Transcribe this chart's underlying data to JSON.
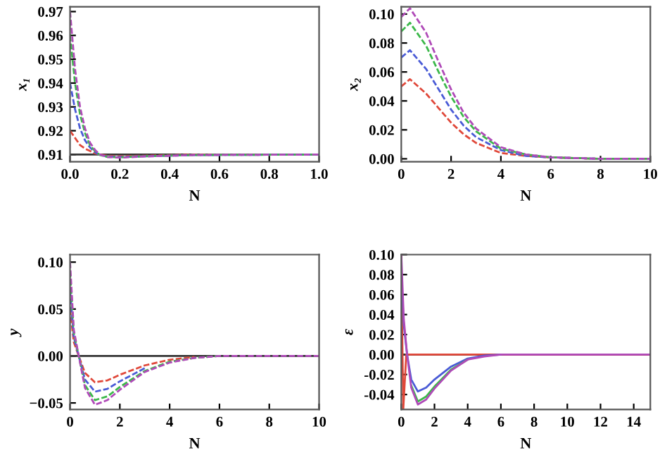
{
  "chart_data": [
    {
      "type": "line",
      "xlabel": "N",
      "ylabel": "x₁",
      "line_style": "dashed",
      "marker": "none",
      "grid": false,
      "legend": false,
      "x": [
        0,
        0.02,
        0.04,
        0.06,
        0.08,
        0.1,
        0.12,
        0.15,
        0.2,
        0.3,
        0.5,
        1.0
      ],
      "xlim": [
        0,
        1
      ],
      "xticks": [
        {
          "value": 0,
          "label": "0.0"
        },
        0.2,
        0.4,
        0.6,
        0.8,
        {
          "value": 1,
          "label": "1.0"
        }
      ],
      "ylim": [
        0.907,
        0.972
      ],
      "yticks": [
        0.91,
        0.92,
        0.93,
        0.94,
        0.95,
        0.96,
        0.97
      ],
      "ref_lines": [
        {
          "axis": "y",
          "value": 0.91,
          "color": "#333333",
          "line_style": "solid"
        }
      ],
      "series": [
        {
          "color": "#e0483a",
          "values": [
            0.92,
            0.917,
            0.914,
            0.9125,
            0.9115,
            0.9105,
            0.91,
            0.9095,
            0.9093,
            0.9095,
            0.91,
            0.91
          ]
        },
        {
          "color": "#4a5bd6",
          "values": [
            0.94,
            0.929,
            0.921,
            0.916,
            0.913,
            0.911,
            0.9098,
            0.9092,
            0.909,
            0.9093,
            0.9098,
            0.91
          ]
        },
        {
          "color": "#3cb84a",
          "values": [
            0.96,
            0.94,
            0.927,
            0.919,
            0.914,
            0.9115,
            0.9098,
            0.909,
            0.9088,
            0.9093,
            0.9098,
            0.91
          ]
        },
        {
          "color": "#b04ab8",
          "values": [
            0.97,
            0.946,
            0.93,
            0.921,
            0.915,
            0.912,
            0.91,
            0.909,
            0.9087,
            0.9092,
            0.9098,
            0.91
          ]
        }
      ]
    },
    {
      "type": "line",
      "xlabel": "N",
      "ylabel": "x₂",
      "line_style": "dashed",
      "marker": "none",
      "grid": false,
      "legend": false,
      "x": [
        0,
        0.35,
        1,
        1.5,
        2,
        2.5,
        3,
        4,
        5,
        6,
        8,
        10
      ],
      "xlim": [
        0,
        10
      ],
      "xticks": [
        0,
        2,
        4,
        6,
        8,
        10
      ],
      "ylim": [
        -0.002,
        0.105
      ],
      "yticks": [
        {
          "value": 0,
          "label": "0.00"
        },
        0.02,
        0.04,
        0.06,
        0.08,
        {
          "value": 0.1,
          "label": "0.10"
        }
      ],
      "series": [
        {
          "color": "#e0483a",
          "values": [
            0.05,
            0.055,
            0.045,
            0.035,
            0.025,
            0.017,
            0.011,
            0.004,
            0.002,
            0.001,
            0,
            0
          ]
        },
        {
          "color": "#4a5bd6",
          "values": [
            0.07,
            0.075,
            0.062,
            0.048,
            0.034,
            0.023,
            0.015,
            0.006,
            0.002,
            0.001,
            0,
            0
          ]
        },
        {
          "color": "#3cb84a",
          "values": [
            0.088,
            0.094,
            0.078,
            0.06,
            0.043,
            0.029,
            0.019,
            0.007,
            0.003,
            0.001,
            0,
            0
          ]
        },
        {
          "color": "#b04ab8",
          "values": [
            0.098,
            0.104,
            0.087,
            0.067,
            0.048,
            0.032,
            0.021,
            0.008,
            0.003,
            0.001,
            0,
            0
          ]
        }
      ]
    },
    {
      "type": "line",
      "xlabel": "N",
      "ylabel": "y",
      "line_style": "dashed",
      "marker": "none",
      "grid": false,
      "legend": false,
      "x": [
        0,
        0.15,
        0.35,
        0.6,
        1,
        1.5,
        2,
        3,
        4,
        5,
        6,
        8,
        10
      ],
      "xlim": [
        0,
        10
      ],
      "xticks": [
        0,
        2,
        4,
        6,
        8,
        10
      ],
      "ylim": [
        -0.057,
        0.108
      ],
      "yticks": [
        {
          "value": -0.05,
          "label": "−0.05"
        },
        {
          "value": 0,
          "label": "0.00"
        },
        0.05,
        {
          "value": 0.1,
          "label": "0.10"
        }
      ],
      "ref_lines": [
        {
          "axis": "y",
          "value": 0,
          "color": "#333333",
          "line_style": "solid"
        }
      ],
      "series": [
        {
          "color": "#e0483a",
          "values": [
            0.05,
            0.015,
            0,
            -0.018,
            -0.028,
            -0.026,
            -0.02,
            -0.01,
            -0.004,
            -0.001,
            null,
            null,
            null
          ]
        },
        {
          "color": "#4a5bd6",
          "values": [
            0.07,
            0.02,
            0,
            -0.025,
            -0.038,
            -0.035,
            -0.027,
            -0.013,
            null,
            null,
            null,
            null,
            null
          ]
        },
        {
          "color": "#3cb84a",
          "values": [
            0.09,
            0.025,
            0,
            -0.031,
            -0.047,
            -0.043,
            -0.033,
            -0.016,
            -0.006,
            -0.002,
            0,
            null,
            null
          ]
        },
        {
          "color": "#b04ab8",
          "values": [
            0.1,
            0.028,
            0,
            -0.034,
            -0.052,
            -0.047,
            -0.036,
            -0.017,
            -0.007,
            -0.002,
            0,
            0,
            0
          ]
        }
      ]
    },
    {
      "type": "line",
      "xlabel": "N",
      "ylabel": "ε",
      "line_style": "solid",
      "marker": "none",
      "grid": false,
      "legend": false,
      "x": [
        0,
        0.15,
        0.35,
        0.6,
        1,
        1.5,
        2,
        3,
        4,
        5,
        6,
        8,
        15
      ],
      "xlim": [
        0,
        15
      ],
      "xticks": [
        0,
        2,
        4,
        6,
        8,
        10,
        12,
        14
      ],
      "ylim": [
        -0.055,
        0.1
      ],
      "yticks": [
        -0.04,
        -0.02,
        {
          "value": 0,
          "label": "0.00"
        },
        0.02,
        0.04,
        0.06,
        0.08,
        {
          "value": 0.1,
          "label": "0.10"
        }
      ],
      "ref_lines": [
        {
          "axis": "y",
          "value": 0,
          "color": "#333333",
          "line_style": "solid"
        }
      ],
      "series": [
        {
          "color": "#e0483a",
          "x": [
            0,
            0.05,
            0.12,
            0.3,
            1,
            15
          ],
          "values": [
            0.1,
            0.03,
            -0.055,
            0,
            0,
            0
          ]
        },
        {
          "color": "#4a5bd6",
          "values": [
            0.08,
            0.03,
            0,
            -0.025,
            -0.037,
            -0.033,
            -0.025,
            -0.012,
            -0.004,
            -0.001,
            0,
            null,
            null
          ]
        },
        {
          "color": "#3cb84a",
          "values": [
            null,
            null,
            null,
            -0.031,
            -0.047,
            -0.042,
            -0.032,
            -0.015,
            -0.005,
            null,
            null,
            null,
            null
          ]
        },
        {
          "color": "#b04ab8",
          "values": [
            0.1,
            0.036,
            0,
            -0.033,
            -0.05,
            -0.045,
            -0.034,
            -0.016,
            -0.005,
            -0.002,
            0,
            0,
            0
          ]
        }
      ]
    }
  ]
}
